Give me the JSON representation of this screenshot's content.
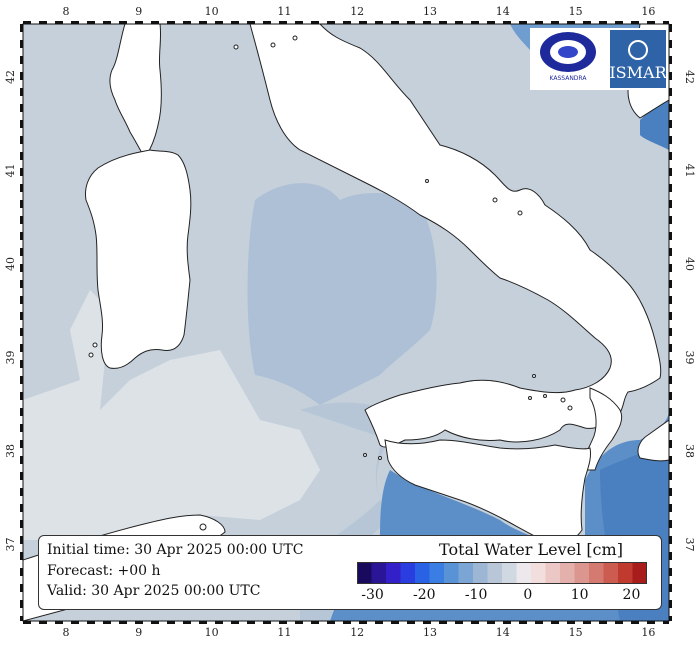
{
  "map": {
    "lon_ticks": [
      "8",
      "9",
      "10",
      "11",
      "12",
      "13",
      "14",
      "15",
      "16"
    ],
    "lat_ticks": [
      "42",
      "41",
      "40",
      "39",
      "38",
      "37"
    ],
    "colors": {
      "sea": "#c5d0db",
      "land": "#ffffff",
      "tyrrhenian_low": "#aec0d6",
      "sardinia_channel": "#dde2e7",
      "ionian": "#5c8fc8",
      "ionian_dark": "#4a7fc0"
    }
  },
  "info": {
    "initial_time": "Initial time: 30 Apr 2025 00:00 UTC",
    "forecast": "Forecast: +00 h",
    "valid": "Valid: 30 Apr 2025 00:00 UTC"
  },
  "legend": {
    "title": "Total Water Level [cm]",
    "ticks": [
      "-30",
      "-20",
      "-10",
      "0",
      "10",
      "20"
    ],
    "colors": [
      "#1a0a5e",
      "#2a1596",
      "#3320c8",
      "#2a3de0",
      "#2a62e6",
      "#3a7ee4",
      "#5a92d6",
      "#7ba5d4",
      "#9cb6d4",
      "#b8c6d8",
      "#d0d8e2",
      "#ece8ec",
      "#f3dede",
      "#ebc8c6",
      "#e4b0ac",
      "#dc9690",
      "#d47a70",
      "#cc5c50",
      "#c03a30",
      "#a81c1c"
    ]
  },
  "logos": {
    "left": "logo-cnr-circle",
    "right": "logo-ismar",
    "left_text": "KASSANDRA",
    "right_text": "ISMAR"
  }
}
